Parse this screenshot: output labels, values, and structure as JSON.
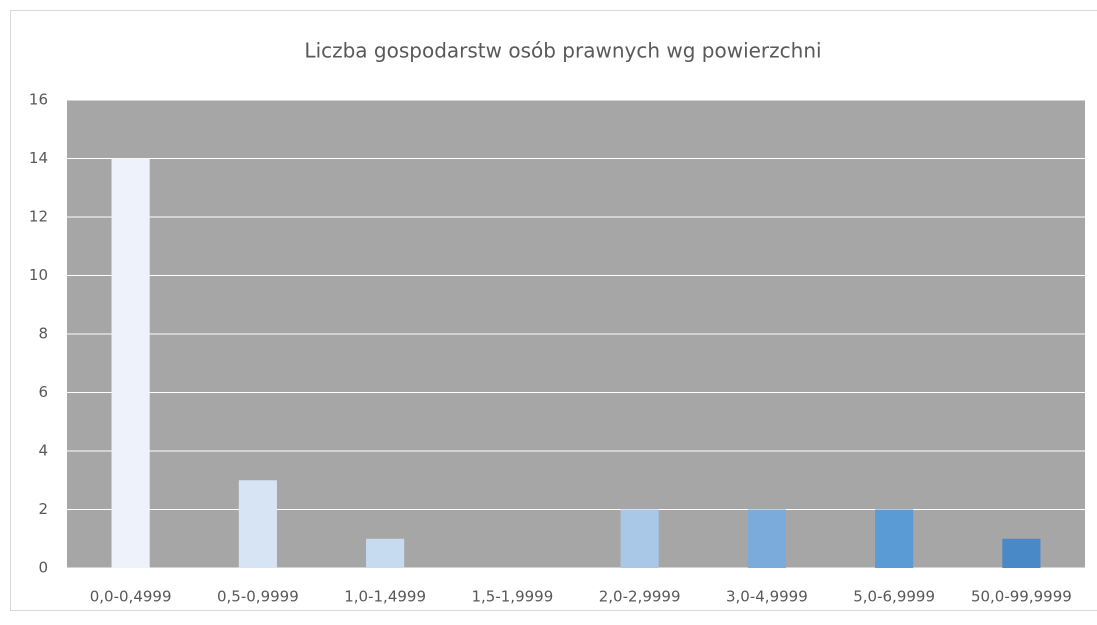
{
  "chart_data": {
    "type": "bar",
    "title": "Liczba gospodarstw osób prawnych wg powierzchni",
    "categories": [
      "0,0-0,4999",
      "0,5-0,9999",
      "1,0-1,4999",
      "1,5-1,9999",
      "2,0-2,9999",
      "3,0-4,9999",
      "5,0-6,9999",
      "50,0-99,9999"
    ],
    "values": [
      14,
      3,
      1,
      0,
      2,
      2,
      2,
      1
    ],
    "colors": [
      "#eef2fa",
      "#d6e4f3",
      "#c6daf0",
      "#b8d0eb",
      "#a9c8e8",
      "#7aabdb",
      "#5b9bd5",
      "#4a89c8"
    ],
    "ylim": [
      0,
      16
    ],
    "yticks": [
      0,
      2,
      4,
      6,
      8,
      10,
      12,
      14,
      16
    ],
    "grid": true
  }
}
